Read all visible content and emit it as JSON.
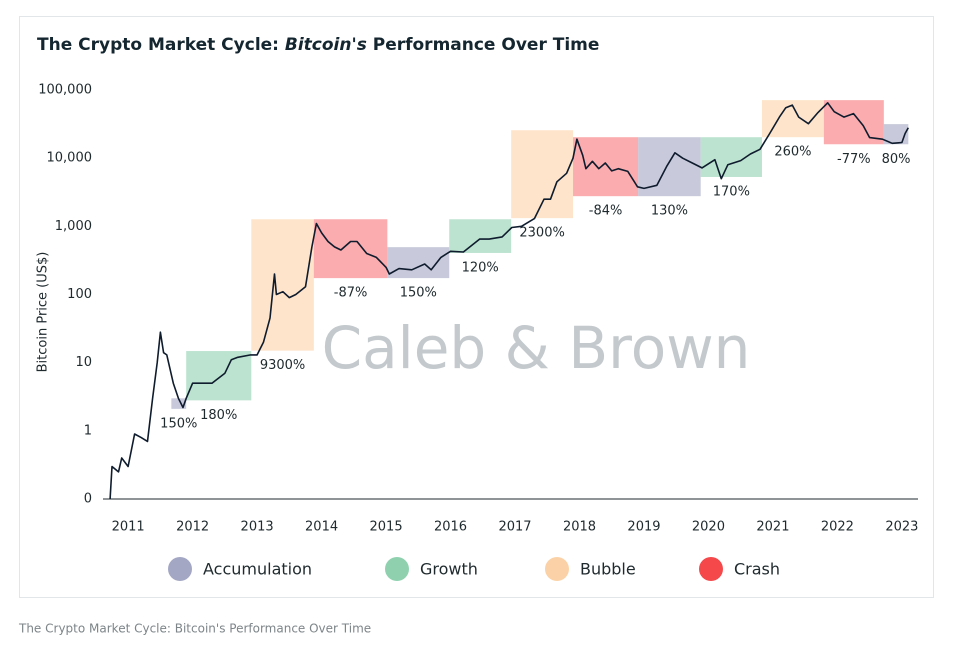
{
  "chart_data": {
    "type": "line",
    "title": [
      "The Crypto Market Cycle:",
      "Bitcoin's",
      "Performance Over Time"
    ],
    "ylabel": "Bitcoin Price (US$)",
    "watermark": "Caleb & Brown",
    "caption": "The Crypto Market Cycle: Bitcoin's Performance Over Time",
    "log_y": true,
    "grid": false,
    "color": "#0f1c2e",
    "xlim": [
      2010.61,
      2023.25
    ],
    "xticks": [
      2011,
      2012,
      2013,
      2014,
      2015,
      2016,
      2017,
      2018,
      2019,
      2020,
      2021,
      2022,
      2023
    ],
    "ylim": [
      0.1,
      100000
    ],
    "yticks": [
      {
        "value": 0.1,
        "label": "0"
      },
      1,
      10,
      100,
      {
        "value": 1000,
        "label": "1,000"
      },
      {
        "value": 10000,
        "label": "10,000"
      },
      {
        "value": 100000,
        "label": "100,000"
      }
    ],
    "phases": [
      {
        "name": "Accumulation",
        "color": "#a3a7c3"
      },
      {
        "name": "Growth",
        "color": "#8fd1af"
      },
      {
        "name": "Bubble",
        "color": "#fbd2a8"
      },
      {
        "name": "Crash",
        "color": "#f4484b"
      }
    ],
    "regions": [
      {
        "phase": "Accumulation",
        "x": [
          2011.67,
          2011.9
        ],
        "low": 2.1,
        "high": 3.0,
        "label": "150%"
      },
      {
        "phase": "Growth",
        "x": [
          2011.9,
          2012.91
        ],
        "low": 2.8,
        "high": 14.8,
        "label": "180%"
      },
      {
        "phase": "Bubble",
        "x": [
          2012.91,
          2013.88
        ],
        "low": 15,
        "high": 1270,
        "label": "9300%"
      },
      {
        "phase": "Crash",
        "x": [
          2013.88,
          2015.02
        ],
        "low": 174,
        "high": 1270,
        "label": "-87%"
      },
      {
        "phase": "Accumulation",
        "x": [
          2015.02,
          2015.98
        ],
        "low": 174,
        "high": 495,
        "label": "150%"
      },
      {
        "phase": "Growth",
        "x": [
          2015.98,
          2016.94
        ],
        "low": 407,
        "high": 1270,
        "label": "120%"
      },
      {
        "phase": "Bubble",
        "x": [
          2016.94,
          2017.9
        ],
        "low": 1320,
        "high": 25700,
        "label": "2300%"
      },
      {
        "phase": "Crash",
        "x": [
          2017.9,
          2018.91
        ],
        "low": 2770,
        "high": 20300,
        "label": "-84%"
      },
      {
        "phase": "Accumulation",
        "x": [
          2018.91,
          2019.88
        ],
        "low": 2770,
        "high": 20300,
        "label": "130%"
      },
      {
        "phase": "Growth",
        "x": [
          2019.88,
          2020.83
        ],
        "low": 5300,
        "high": 20300,
        "label": "170%"
      },
      {
        "phase": "Bubble",
        "x": [
          2020.83,
          2021.79
        ],
        "low": 20300,
        "high": 71000,
        "label": "260%"
      },
      {
        "phase": "Crash",
        "x": [
          2021.79,
          2022.72
        ],
        "low": 16000,
        "high": 71000,
        "label": "-77%"
      },
      {
        "phase": "Accumulation",
        "x": [
          2022.72,
          2023.1
        ],
        "low": 16000,
        "high": 31600,
        "label": "80%"
      }
    ],
    "x": [
      2010.72,
      2010.75,
      2010.85,
      2010.9,
      2011.0,
      2011.1,
      2011.2,
      2011.3,
      2011.38,
      2011.45,
      2011.5,
      2011.55,
      2011.6,
      2011.7,
      2011.78,
      2011.85,
      2011.9,
      2012.0,
      2012.1,
      2012.3,
      2012.5,
      2012.6,
      2012.7,
      2012.9,
      2013.0,
      2013.1,
      2013.2,
      2013.27,
      2013.3,
      2013.4,
      2013.5,
      2013.6,
      2013.75,
      2013.85,
      2013.92,
      2014.0,
      2014.1,
      2014.2,
      2014.3,
      2014.45,
      2014.55,
      2014.7,
      2014.85,
      2015.0,
      2015.05,
      2015.2,
      2015.4,
      2015.6,
      2015.7,
      2015.85,
      2016.0,
      2016.2,
      2016.45,
      2016.6,
      2016.8,
      2016.95,
      2017.1,
      2017.3,
      2017.45,
      2017.55,
      2017.65,
      2017.8,
      2017.9,
      2017.96,
      2018.05,
      2018.1,
      2018.2,
      2018.3,
      2018.4,
      2018.5,
      2018.6,
      2018.75,
      2018.9,
      2019.0,
      2019.2,
      2019.35,
      2019.48,
      2019.6,
      2019.75,
      2019.9,
      2020.1,
      2020.2,
      2020.3,
      2020.5,
      2020.65,
      2020.8,
      2020.95,
      2021.1,
      2021.2,
      2021.3,
      2021.4,
      2021.55,
      2021.7,
      2021.85,
      2021.95,
      2022.1,
      2022.25,
      2022.4,
      2022.5,
      2022.7,
      2022.85,
      2022.95,
      2023.0,
      2023.05,
      2023.1
    ],
    "values": [
      0.1,
      0.3,
      0.25,
      0.4,
      0.3,
      0.9,
      0.8,
      0.7,
      3,
      10,
      28,
      14,
      13,
      5,
      3,
      2.2,
      3,
      5,
      5,
      5,
      7,
      11,
      12,
      13,
      13,
      20,
      45,
      200,
      100,
      110,
      90,
      100,
      130,
      500,
      1100,
      800,
      600,
      500,
      450,
      600,
      600,
      400,
      350,
      250,
      200,
      240,
      230,
      280,
      230,
      350,
      430,
      420,
      650,
      650,
      700,
      960,
      1000,
      1300,
      2500,
      2500,
      4500,
      6000,
      10000,
      19000,
      11000,
      7000,
      9000,
      7000,
      8500,
      6500,
      7000,
      6400,
      3800,
      3600,
      4000,
      7500,
      12000,
      10000,
      8500,
      7200,
      9500,
      5000,
      8000,
      9200,
      11500,
      13500,
      23000,
      40000,
      55000,
      60000,
      40000,
      32000,
      47000,
      65000,
      48000,
      40000,
      45000,
      30000,
      20000,
      19000,
      16500,
      16800,
      17000,
      23000,
      28000
    ]
  }
}
